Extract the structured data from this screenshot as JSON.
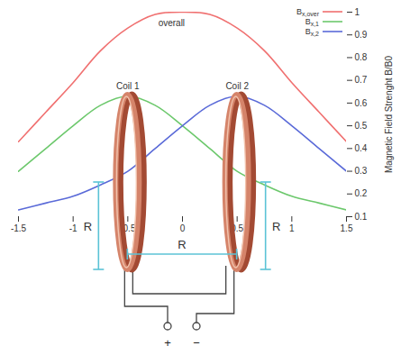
{
  "chart_data": {
    "type": "line",
    "y_label": "Magnetic Field Strenght B/B0",
    "x": [
      -1.5,
      -1.25,
      -1,
      -0.75,
      -0.5,
      -0.25,
      0,
      0.25,
      0.5,
      0.75,
      1,
      1.25,
      1.5
    ],
    "xlim": [
      -1.5,
      1.5
    ],
    "xticks": [
      -1.5,
      -1,
      -0.5,
      0,
      0.5,
      1,
      1.5
    ],
    "ylim": [
      0.1,
      1
    ],
    "yticks": [
      0.1,
      0.2,
      0.3,
      0.4,
      0.5,
      0.6,
      0.7,
      0.8,
      0.9,
      1
    ],
    "grid": false,
    "legend": "top-right",
    "series": [
      {
        "name": "Bx,over",
        "color": "#f07070",
        "values": [
          0.43,
          0.56,
          0.69,
          0.83,
          0.93,
          0.99,
          1.0,
          0.99,
          0.93,
          0.83,
          0.69,
          0.56,
          0.43
        ]
      },
      {
        "name": "Bx,1",
        "color": "#6cc86c",
        "values": [
          0.3,
          0.4,
          0.5,
          0.59,
          0.63,
          0.59,
          0.5,
          0.4,
          0.3,
          0.24,
          0.19,
          0.16,
          0.13
        ]
      },
      {
        "name": "Bx,2",
        "color": "#5a6ad8",
        "values": [
          0.13,
          0.16,
          0.19,
          0.24,
          0.3,
          0.4,
          0.5,
          0.59,
          0.63,
          0.59,
          0.5,
          0.4,
          0.3
        ]
      }
    ],
    "annotations": [
      {
        "text": "overall",
        "x": -0.1,
        "y": 0.95
      }
    ],
    "coils": [
      {
        "label": "Coil 1",
        "x": -0.5,
        "y": 0.66
      },
      {
        "label": "Coil 2",
        "x": 0.5,
        "y": 0.66
      }
    ]
  },
  "diagram": {
    "dimension_labels": [
      "R",
      "R",
      "R"
    ],
    "terminals": [
      "+",
      "−"
    ]
  }
}
